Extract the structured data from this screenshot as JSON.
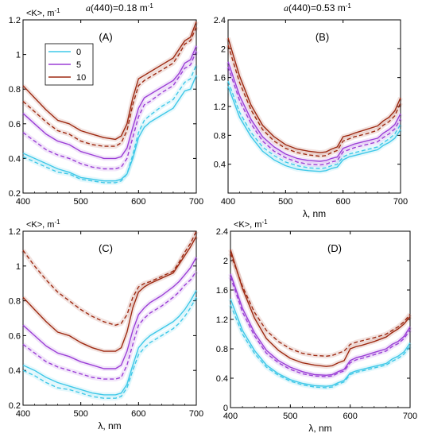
{
  "figure": {
    "header_a": "a(440)=0.18 m",
    "header_b": "a(440)=0.53 m",
    "header_sup": "-1"
  },
  "legend": {
    "entries": [
      "0",
      "5",
      "10"
    ],
    "colors": [
      "#3fc8e8",
      "#9b3fd6",
      "#9e2a12"
    ]
  },
  "chart_data": [
    {
      "type": "line",
      "panel": "(A)",
      "title": "(A)",
      "ylabel": "<K>, m",
      "ylabel_sup": "-1",
      "xlabel": "",
      "xlim": [
        400,
        700
      ],
      "ylim": [
        0.2,
        1.2
      ],
      "xticks": [
        400,
        500,
        600,
        700
      ],
      "yticks": [
        0.2,
        0.4,
        0.6,
        0.8,
        1.0,
        1.2
      ],
      "ytick_labels": [
        "0.2",
        "0.4",
        "0.6",
        "0.8",
        "1",
        "1.2"
      ],
      "x": [
        400,
        420,
        440,
        460,
        480,
        500,
        520,
        540,
        560,
        570,
        580,
        590,
        600,
        610,
        620,
        640,
        660,
        670,
        680,
        690,
        700
      ],
      "series": [
        {
          "color": "#3fc8e8",
          "style": "solid",
          "values": [
            0.43,
            0.4,
            0.37,
            0.34,
            0.32,
            0.29,
            0.28,
            0.27,
            0.27,
            0.28,
            0.31,
            0.4,
            0.52,
            0.58,
            0.61,
            0.65,
            0.69,
            0.74,
            0.79,
            0.8,
            0.88
          ]
        },
        {
          "color": "#3fc8e8",
          "style": "dashed",
          "values": [
            0.41,
            0.38,
            0.35,
            0.32,
            0.31,
            0.28,
            0.27,
            0.26,
            0.26,
            0.27,
            0.31,
            0.42,
            0.55,
            0.62,
            0.65,
            0.7,
            0.74,
            0.79,
            0.84,
            0.86,
            0.94
          ]
        },
        {
          "color": "#9b3fd6",
          "style": "solid",
          "values": [
            0.66,
            0.6,
            0.54,
            0.5,
            0.48,
            0.44,
            0.42,
            0.4,
            0.4,
            0.41,
            0.46,
            0.58,
            0.69,
            0.75,
            0.77,
            0.81,
            0.85,
            0.89,
            0.95,
            0.97,
            1.05
          ]
        },
        {
          "color": "#9b3fd6",
          "style": "dashed",
          "values": [
            0.55,
            0.5,
            0.45,
            0.42,
            0.4,
            0.37,
            0.35,
            0.34,
            0.34,
            0.35,
            0.4,
            0.52,
            0.64,
            0.71,
            0.73,
            0.78,
            0.82,
            0.87,
            0.92,
            0.94,
            1.02
          ]
        },
        {
          "color": "#9e2a12",
          "style": "solid",
          "values": [
            0.82,
            0.75,
            0.68,
            0.62,
            0.6,
            0.56,
            0.54,
            0.52,
            0.51,
            0.53,
            0.6,
            0.75,
            0.86,
            0.88,
            0.9,
            0.94,
            0.98,
            1.03,
            1.08,
            1.1,
            1.19
          ]
        },
        {
          "color": "#9e2a12",
          "style": "dashed",
          "values": [
            0.73,
            0.67,
            0.61,
            0.56,
            0.54,
            0.5,
            0.48,
            0.47,
            0.47,
            0.49,
            0.56,
            0.71,
            0.82,
            0.85,
            0.87,
            0.91,
            0.95,
            1.0,
            1.06,
            1.08,
            1.16
          ]
        }
      ]
    },
    {
      "type": "line",
      "panel": "(B)",
      "title": "(B)",
      "ylabel": "",
      "xlabel": "λ, nm",
      "xlim": [
        400,
        700
      ],
      "ylim": [
        0.0,
        2.4
      ],
      "xticks": [
        400,
        500,
        600,
        700
      ],
      "yticks": [
        0.4,
        0.8,
        1.2,
        1.6,
        2.0,
        2.4
      ],
      "ytick_labels": [
        "0.4",
        "0.8",
        "1.2",
        "1.6",
        "2",
        "2.4"
      ],
      "x": [
        400,
        420,
        440,
        460,
        480,
        500,
        520,
        540,
        560,
        570,
        580,
        590,
        600,
        610,
        620,
        640,
        660,
        670,
        680,
        690,
        700
      ],
      "series": [
        {
          "color": "#3fc8e8",
          "style": "solid",
          "values": [
            1.48,
            1.05,
            0.78,
            0.58,
            0.46,
            0.38,
            0.33,
            0.31,
            0.3,
            0.31,
            0.34,
            0.36,
            0.46,
            0.5,
            0.52,
            0.56,
            0.6,
            0.66,
            0.7,
            0.76,
            0.88
          ]
        },
        {
          "color": "#3fc8e8",
          "style": "dashed",
          "values": [
            1.55,
            1.12,
            0.84,
            0.64,
            0.52,
            0.43,
            0.38,
            0.35,
            0.34,
            0.35,
            0.38,
            0.4,
            0.5,
            0.54,
            0.56,
            0.6,
            0.64,
            0.7,
            0.75,
            0.82,
            0.95
          ]
        },
        {
          "color": "#9b3fd6",
          "style": "solid",
          "values": [
            1.82,
            1.35,
            1.02,
            0.78,
            0.64,
            0.54,
            0.48,
            0.45,
            0.44,
            0.45,
            0.48,
            0.5,
            0.62,
            0.65,
            0.68,
            0.72,
            0.76,
            0.83,
            0.88,
            0.95,
            1.1
          ]
        },
        {
          "color": "#9b3fd6",
          "style": "dashed",
          "values": [
            1.75,
            1.28,
            0.96,
            0.72,
            0.58,
            0.49,
            0.43,
            0.4,
            0.39,
            0.4,
            0.43,
            0.45,
            0.57,
            0.6,
            0.63,
            0.67,
            0.71,
            0.77,
            0.82,
            0.89,
            1.03
          ]
        },
        {
          "color": "#9e2a12",
          "style": "solid",
          "values": [
            2.15,
            1.62,
            1.22,
            0.94,
            0.78,
            0.67,
            0.61,
            0.58,
            0.56,
            0.57,
            0.61,
            0.64,
            0.78,
            0.8,
            0.83,
            0.88,
            0.93,
            1.0,
            1.05,
            1.14,
            1.32
          ]
        },
        {
          "color": "#9e2a12",
          "style": "dashed",
          "values": [
            2.05,
            1.53,
            1.15,
            0.88,
            0.72,
            0.62,
            0.56,
            0.53,
            0.51,
            0.52,
            0.56,
            0.59,
            0.72,
            0.75,
            0.78,
            0.82,
            0.87,
            0.94,
            0.99,
            1.07,
            1.25
          ]
        }
      ]
    },
    {
      "type": "line",
      "panel": "(C)",
      "title": "(C)",
      "ylabel": "<K>, m",
      "ylabel_sup": "-1",
      "xlabel": "λ, nm",
      "xlim": [
        400,
        700
      ],
      "ylim": [
        0.2,
        1.2
      ],
      "xticks": [
        400,
        500,
        600,
        700
      ],
      "yticks": [
        0.2,
        0.4,
        0.6,
        0.8,
        1.0,
        1.2
      ],
      "ytick_labels": [
        "0.2",
        "0.4",
        "0.6",
        "0.8",
        "1",
        "1.2"
      ],
      "x": [
        400,
        420,
        440,
        460,
        480,
        500,
        520,
        540,
        560,
        570,
        580,
        590,
        600,
        610,
        620,
        640,
        660,
        670,
        680,
        690,
        700
      ],
      "series": [
        {
          "color": "#3fc8e8",
          "style": "solid",
          "values": [
            0.43,
            0.4,
            0.36,
            0.33,
            0.31,
            0.29,
            0.27,
            0.26,
            0.26,
            0.27,
            0.32,
            0.43,
            0.53,
            0.57,
            0.6,
            0.64,
            0.68,
            0.71,
            0.75,
            0.8,
            0.86
          ]
        },
        {
          "color": "#3fc8e8",
          "style": "dashed",
          "values": [
            0.4,
            0.37,
            0.33,
            0.3,
            0.29,
            0.27,
            0.25,
            0.24,
            0.24,
            0.25,
            0.3,
            0.4,
            0.49,
            0.53,
            0.56,
            0.6,
            0.64,
            0.67,
            0.71,
            0.76,
            0.82
          ]
        },
        {
          "color": "#9b3fd6",
          "style": "solid",
          "values": [
            0.66,
            0.6,
            0.54,
            0.5,
            0.48,
            0.45,
            0.43,
            0.41,
            0.41,
            0.43,
            0.51,
            0.63,
            0.72,
            0.76,
            0.79,
            0.83,
            0.88,
            0.91,
            0.95,
            0.99,
            1.05
          ]
        },
        {
          "color": "#9b3fd6",
          "style": "dashed",
          "values": [
            0.55,
            0.5,
            0.45,
            0.42,
            0.4,
            0.38,
            0.36,
            0.35,
            0.35,
            0.36,
            0.43,
            0.55,
            0.66,
            0.7,
            0.73,
            0.77,
            0.82,
            0.85,
            0.89,
            0.92,
            0.97
          ]
        },
        {
          "color": "#9e2a12",
          "style": "solid",
          "values": [
            0.82,
            0.75,
            0.68,
            0.62,
            0.6,
            0.56,
            0.53,
            0.51,
            0.51,
            0.53,
            0.62,
            0.76,
            0.85,
            0.88,
            0.9,
            0.93,
            0.96,
            1.01,
            1.06,
            1.11,
            1.17
          ]
        },
        {
          "color": "#9e2a12",
          "style": "dashed",
          "values": [
            1.09,
            1.0,
            0.92,
            0.85,
            0.8,
            0.75,
            0.71,
            0.68,
            0.66,
            0.67,
            0.72,
            0.82,
            0.88,
            0.9,
            0.91,
            0.94,
            0.97,
            1.02,
            1.08,
            1.13,
            1.2
          ]
        }
      ]
    },
    {
      "type": "line",
      "panel": "(D)",
      "title": "(D)",
      "ylabel": "<K>, m",
      "ylabel_sup": "-1",
      "xlabel": "λ, nm",
      "xlim": [
        400,
        700
      ],
      "ylim": [
        0.0,
        2.4
      ],
      "xticks": [
        400,
        500,
        600,
        700
      ],
      "yticks": [
        0,
        0.4,
        0.8,
        1.2,
        1.6,
        2.0,
        2.4
      ],
      "ytick_labels": [
        "0",
        "0.4",
        "0.8",
        "1.2",
        "1.6",
        "2",
        "2.4"
      ],
      "x": [
        400,
        420,
        440,
        460,
        480,
        500,
        520,
        540,
        560,
        570,
        580,
        590,
        600,
        610,
        620,
        640,
        660,
        670,
        680,
        690,
        700
      ],
      "series": [
        {
          "color": "#3fc8e8",
          "style": "solid",
          "values": [
            1.48,
            1.05,
            0.78,
            0.58,
            0.46,
            0.38,
            0.33,
            0.3,
            0.29,
            0.3,
            0.34,
            0.37,
            0.47,
            0.5,
            0.52,
            0.56,
            0.6,
            0.66,
            0.7,
            0.76,
            0.88
          ]
        },
        {
          "color": "#3fc8e8",
          "style": "dashed",
          "values": [
            1.4,
            1.0,
            0.74,
            0.55,
            0.44,
            0.36,
            0.31,
            0.28,
            0.27,
            0.28,
            0.32,
            0.35,
            0.45,
            0.48,
            0.5,
            0.54,
            0.58,
            0.63,
            0.67,
            0.73,
            0.84
          ]
        },
        {
          "color": "#9b3fd6",
          "style": "solid",
          "values": [
            1.82,
            1.35,
            1.02,
            0.78,
            0.64,
            0.55,
            0.49,
            0.45,
            0.44,
            0.45,
            0.49,
            0.52,
            0.64,
            0.68,
            0.7,
            0.75,
            0.8,
            0.86,
            0.9,
            0.97,
            1.1
          ]
        },
        {
          "color": "#9b3fd6",
          "style": "dashed",
          "values": [
            1.78,
            1.3,
            0.98,
            0.74,
            0.61,
            0.52,
            0.46,
            0.43,
            0.42,
            0.43,
            0.47,
            0.5,
            0.61,
            0.65,
            0.67,
            0.72,
            0.77,
            0.83,
            0.87,
            0.94,
            1.06
          ]
        },
        {
          "color": "#9e2a12",
          "style": "solid",
          "values": [
            2.15,
            1.62,
            1.22,
            0.94,
            0.78,
            0.67,
            0.61,
            0.58,
            0.56,
            0.57,
            0.61,
            0.64,
            0.8,
            0.83,
            0.85,
            0.9,
            0.96,
            1.02,
            1.07,
            1.14,
            1.24
          ]
        },
        {
          "color": "#9e2a12",
          "style": "dashed",
          "values": [
            2.1,
            1.65,
            1.3,
            1.05,
            0.9,
            0.8,
            0.74,
            0.71,
            0.7,
            0.71,
            0.74,
            0.77,
            0.86,
            0.89,
            0.91,
            0.95,
            1.0,
            1.05,
            1.1,
            1.17,
            1.27
          ]
        }
      ]
    }
  ]
}
